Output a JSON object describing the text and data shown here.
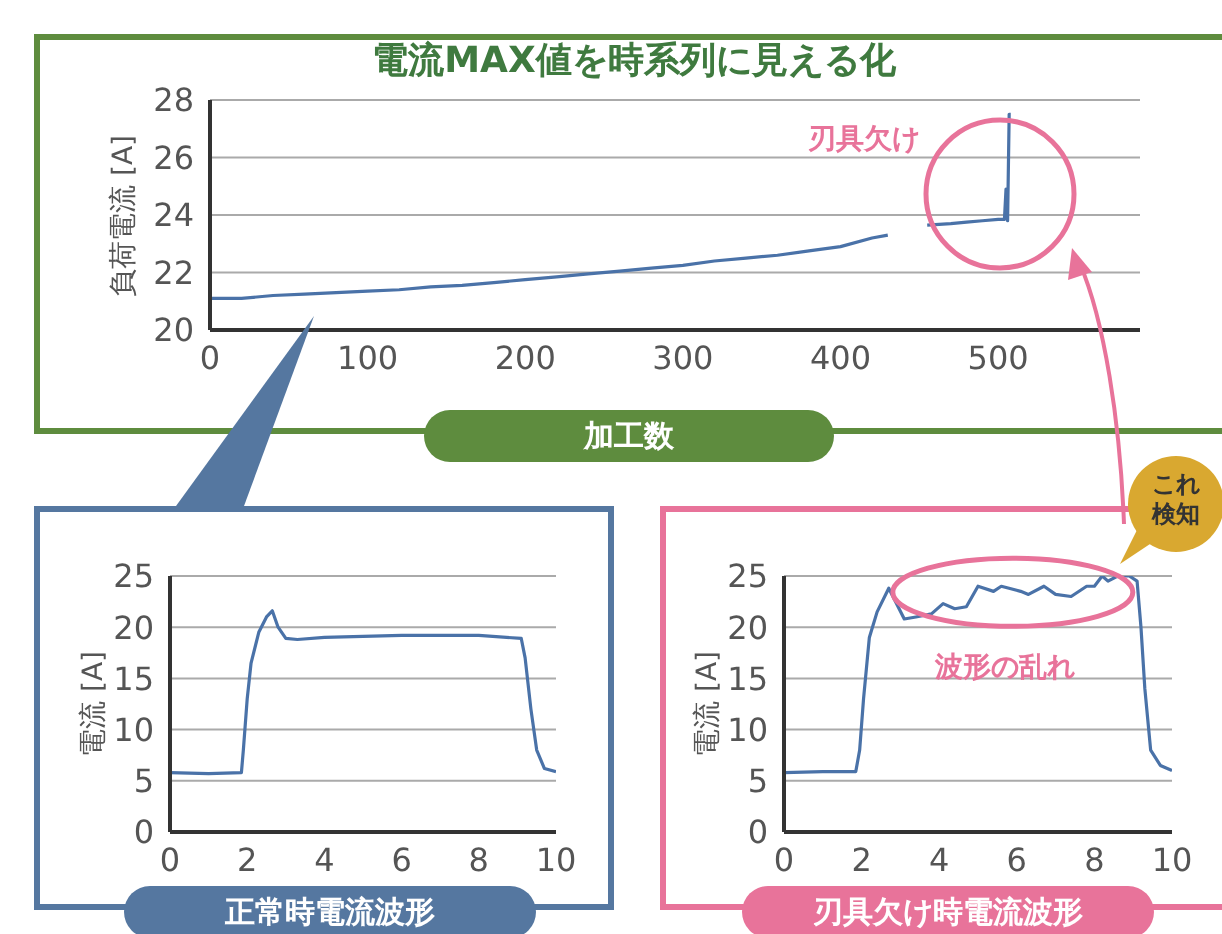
{
  "chart_data": [
    {
      "type": "line",
      "title": "電流MAX値を時系列に見える化",
      "xlabel": "加工数",
      "ylabel": "負荷電流 [A]",
      "color": "#4a72a8",
      "x": [
        0,
        10,
        20,
        40,
        60,
        80,
        100,
        120,
        140,
        160,
        180,
        200,
        220,
        240,
        260,
        280,
        300,
        320,
        340,
        360,
        380,
        400,
        420,
        430,
        443,
        455,
        470,
        480,
        490,
        500,
        504,
        505,
        506,
        507,
        508
      ],
      "values": [
        21.1,
        21.1,
        21.1,
        21.2,
        21.25,
        21.3,
        21.35,
        21.4,
        21.5,
        21.55,
        21.65,
        21.75,
        21.85,
        21.95,
        22.05,
        22.15,
        22.25,
        22.4,
        22.5,
        22.6,
        22.75,
        22.9,
        23.2,
        23.3,
        null,
        23.65,
        23.7,
        23.75,
        23.8,
        23.85,
        23.85,
        24.9,
        23.8,
        27.5,
        27.5
      ],
      "xlim": [
        0,
        590
      ],
      "ylim": [
        20,
        28
      ],
      "xticks": [
        0,
        100,
        200,
        300,
        400,
        500
      ],
      "yticks": [
        20,
        22,
        24,
        26,
        28
      ],
      "grid": "y",
      "annotations": [
        "刃具欠け"
      ]
    },
    {
      "type": "line",
      "title": "正常時電流波形",
      "ylabel": "電流 [A]",
      "color": "#4a72a8",
      "x": [
        0,
        1,
        1.85,
        1.9,
        2,
        2.1,
        2.3,
        2.5,
        2.65,
        2.8,
        3,
        3.3,
        4,
        5,
        6,
        7,
        8,
        9.1,
        9.2,
        9.35,
        9.5,
        9.7,
        10
      ],
      "values": [
        5.8,
        5.7,
        5.8,
        8,
        13,
        16.5,
        19.5,
        21,
        21.6,
        20,
        18.9,
        18.8,
        19,
        19.1,
        19.2,
        19.2,
        19.2,
        18.9,
        17,
        12,
        8,
        6.2,
        5.9
      ],
      "xlim": [
        0,
        10
      ],
      "ylim": [
        0,
        25
      ],
      "xticks": [
        0,
        2,
        4,
        6,
        8,
        10
      ],
      "yticks": [
        0,
        5,
        10,
        15,
        20,
        25
      ],
      "grid": "y"
    },
    {
      "type": "line",
      "title": "刃具欠け時電流波形",
      "ylabel": "電流 [A]",
      "color": "#4a72a8",
      "x": [
        0,
        1,
        1.85,
        1.95,
        2.05,
        2.2,
        2.4,
        2.7,
        3.1,
        3.4,
        3.8,
        4.1,
        4.4,
        4.7,
        5,
        5.4,
        5.6,
        5.8,
        6.1,
        6.3,
        6.7,
        7,
        7.4,
        7.8,
        8,
        8.2,
        8.35,
        8.6,
        8.9,
        9.1,
        9.2,
        9.3,
        9.45,
        9.7,
        10
      ],
      "values": [
        5.8,
        5.9,
        5.9,
        8,
        13,
        19,
        21.5,
        23.8,
        20.8,
        21,
        21.3,
        22.3,
        21.8,
        22,
        24,
        23.5,
        24,
        23.8,
        23.5,
        23.2,
        24,
        23.2,
        23,
        24,
        24,
        25,
        24.5,
        25,
        25,
        24.5,
        20,
        14,
        8,
        6.5,
        6
      ],
      "xlim": [
        0,
        10
      ],
      "ylim": [
        0,
        25
      ],
      "xticks": [
        0,
        2,
        4,
        6,
        8,
        10
      ],
      "yticks": [
        0,
        5,
        10,
        15,
        20,
        25
      ],
      "grid": "y",
      "annotations": [
        {
          "text": "波形の乱れ",
          "x": 6,
          "y": 24
        },
        "これ",
        "検知"
      ]
    }
  ]
}
